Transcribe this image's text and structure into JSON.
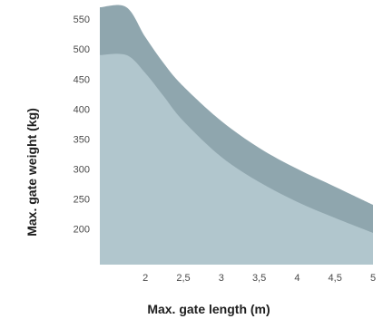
{
  "chart_data": {
    "type": "area",
    "title": "",
    "xlabel": "Max. gate length (m)",
    "ylabel": "Max. gate weight (kg)",
    "xlim": [
      1.4,
      5
    ],
    "ylim": [
      140,
      570
    ],
    "x_ticks": [
      "2",
      "2,5",
      "3",
      "3,5",
      "4",
      "4,5",
      "5"
    ],
    "x_tick_values": [
      2,
      2.5,
      3,
      3.5,
      4,
      4.5,
      5
    ],
    "y_ticks": [
      "550",
      "500",
      "450",
      "400",
      "350",
      "300",
      "250",
      "200"
    ],
    "y_tick_values": [
      550,
      500,
      450,
      400,
      350,
      300,
      250,
      200
    ],
    "grid": false,
    "legend": "none",
    "series": [
      {
        "color": "#8fa6ae",
        "x": [
          1.4,
          1.75,
          2.0,
          2.25,
          2.5,
          3.0,
          3.5,
          4.0,
          4.5,
          5.0
        ],
        "values": [
          570,
          570,
          520,
          475,
          438,
          380,
          335,
          300,
          270,
          240
        ]
      },
      {
        "color": "#b1c6cd",
        "x": [
          1.4,
          1.75,
          2.0,
          2.25,
          2.5,
          3.0,
          3.5,
          4.0,
          4.5,
          5.0
        ],
        "values": [
          490,
          490,
          460,
          420,
          380,
          320,
          278,
          245,
          218,
          193
        ]
      }
    ]
  }
}
